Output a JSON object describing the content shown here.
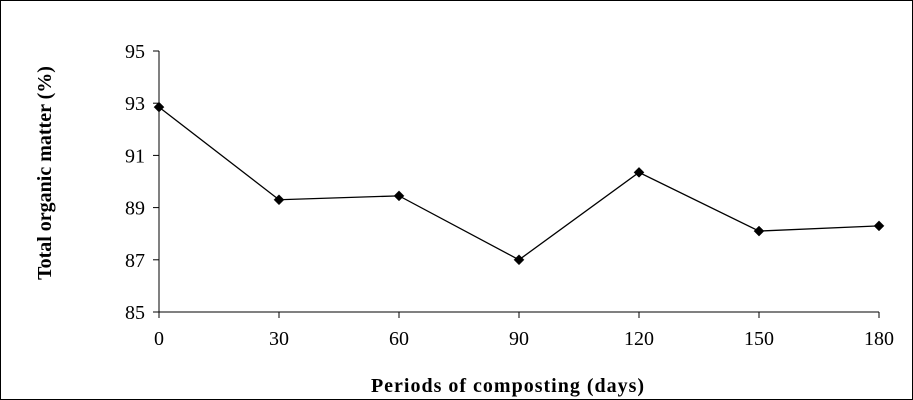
{
  "chart_data": {
    "type": "line",
    "title": "",
    "xlabel": "Periods of composting (days)",
    "ylabel": "Total organic matter (%)",
    "x": [
      0,
      30,
      60,
      90,
      120,
      150,
      180
    ],
    "x_ticks": [
      "0",
      "30",
      "60",
      "90",
      "120",
      "150",
      "180"
    ],
    "y_ticks": [
      "85",
      "87",
      "89",
      "91",
      "93",
      "95"
    ],
    "ylim": [
      85,
      95
    ],
    "xlim": [
      0,
      180
    ],
    "grid": false,
    "legend": "none",
    "series": [
      {
        "values": [
          92.85,
          89.3,
          89.45,
          87.0,
          90.35,
          88.1,
          88.3
        ],
        "color": "#000000",
        "marker": "diamond"
      }
    ]
  }
}
